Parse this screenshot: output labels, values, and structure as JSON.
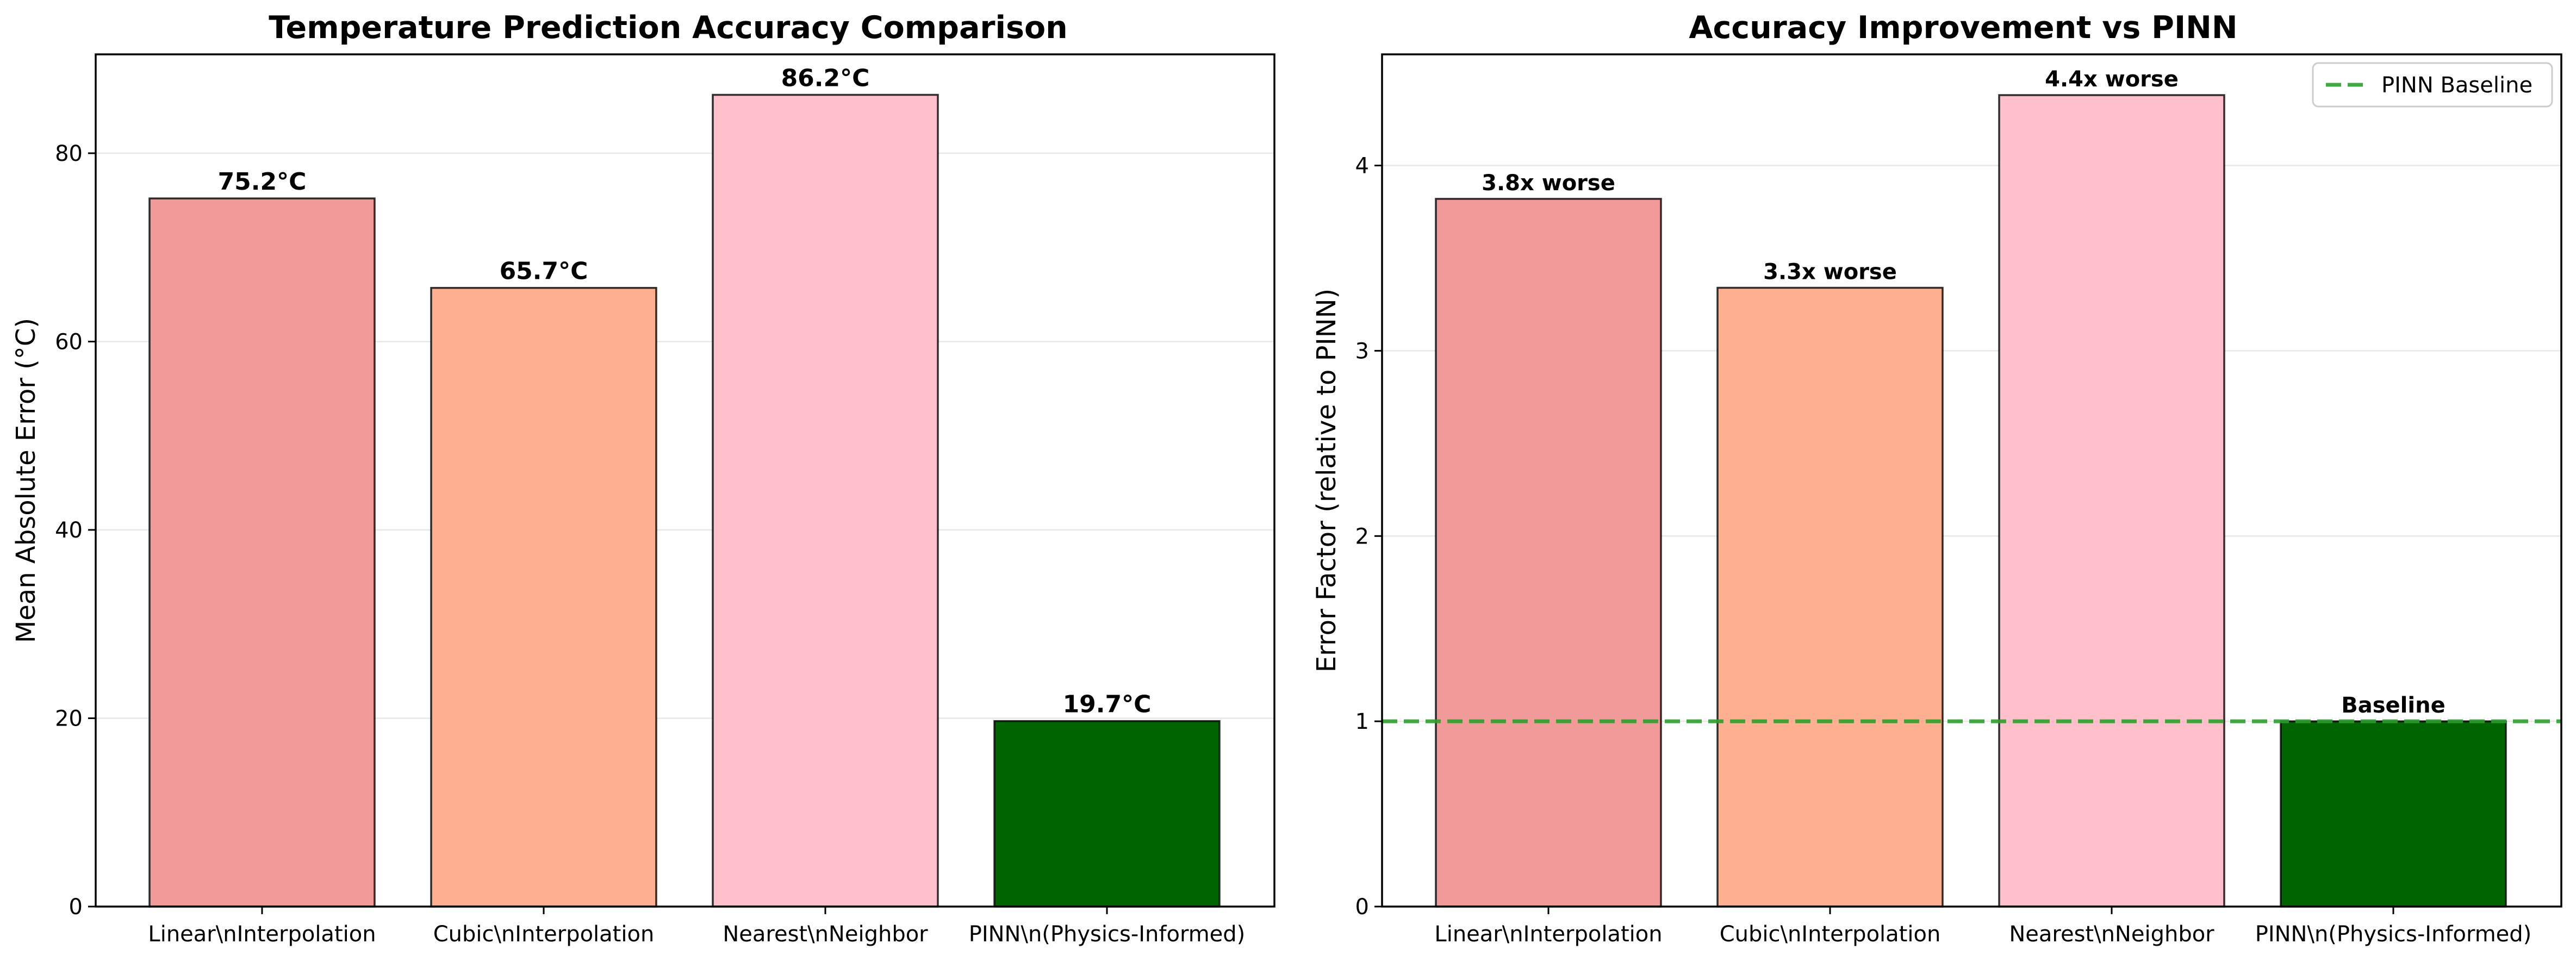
{
  "chart_data": [
    {
      "type": "bar",
      "title": "Temperature Prediction Accuracy Comparison",
      "xlabel": "",
      "ylabel": "Mean Absolute Error (°C)",
      "categories": [
        "Linear\\nInterpolation",
        "Cubic\\nInterpolation",
        "Nearest\\nNeighbor",
        "PINN\\n(Physics-Informed)"
      ],
      "values": [
        75.2,
        65.7,
        86.2,
        19.7
      ],
      "bar_labels": [
        "75.2°C",
        "65.7°C",
        "86.2°C",
        "19.7°C"
      ],
      "colors": [
        "#f19a9a",
        "#ffb091",
        "#ffc0cb",
        "#006400"
      ],
      "ylim": [
        0,
        90.5
      ],
      "yticks": [
        0,
        20,
        40,
        60,
        80
      ],
      "ytick_labels": [
        "0",
        "20",
        "40",
        "60",
        "80"
      ],
      "grid": "y"
    },
    {
      "type": "bar",
      "title": "Accuracy Improvement vs PINN",
      "xlabel": "",
      "ylabel": "Error Factor (relative to PINN)",
      "categories": [
        "Linear\\nInterpolation",
        "Cubic\\nInterpolation",
        "Nearest\\nNeighbor",
        "PINN\\n(Physics-Informed)"
      ],
      "values": [
        3.82,
        3.34,
        4.38,
        1.0
      ],
      "bar_labels": [
        "3.8x worse",
        "3.3x worse",
        "4.4x worse",
        "Baseline"
      ],
      "colors": [
        "#f19a9a",
        "#ffb091",
        "#ffc0cb",
        "#006400"
      ],
      "ylim": [
        0,
        4.6
      ],
      "yticks": [
        0,
        1,
        2,
        3,
        4
      ],
      "ytick_labels": [
        "0",
        "1",
        "2",
        "3",
        "4"
      ],
      "grid": "y",
      "reference_line": {
        "value": 1,
        "label": "PINN Baseline",
        "color": "#2ca02c",
        "style": "dashed"
      },
      "legend": {
        "position": "top-right",
        "entries": [
          "PINN Baseline"
        ]
      }
    }
  ]
}
